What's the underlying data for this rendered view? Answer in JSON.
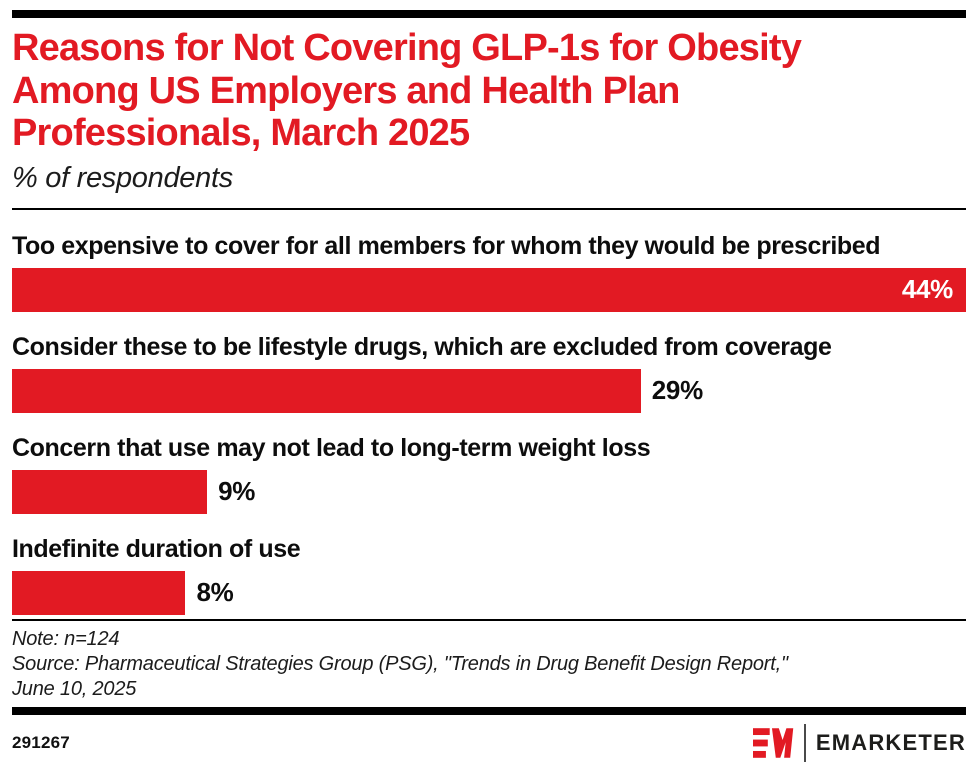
{
  "header": {
    "title_lines": [
      "Reasons for Not Covering GLP-1s for Obesity",
      "Among US Employers and Health Plan",
      "Professionals, March 2025"
    ],
    "subtitle": "% of respondents"
  },
  "chart_data": {
    "type": "bar",
    "orientation": "horizontal",
    "title": "Reasons for Not Covering GLP-1s for Obesity Among US Employers and Health Plan Professionals, March 2025",
    "unit_label": "% of respondents",
    "categories": [
      "Too expensive to cover for all members for whom they would be prescribed",
      "Consider these to be lifestyle drugs, which are excluded from coverage",
      "Concern that use may not lead to long-term weight loss",
      "Indefinite duration of use"
    ],
    "values": [
      44,
      29,
      9,
      8
    ],
    "value_labels": [
      "44%",
      "29%",
      "9%",
      "8%"
    ],
    "xlim": [
      0,
      44
    ],
    "grid": false,
    "legend": false,
    "bar_color": "#e21a23",
    "value_label_placement": [
      "inside-right",
      "outside-right",
      "outside-right",
      "outside-right"
    ]
  },
  "footer": {
    "note": "Note: n=124",
    "source_line": "Source: Pharmaceutical Strategies Group (PSG), \"Trends in Drug Benefit Design Report,\"",
    "source_date": "June 10, 2025",
    "chart_number": "291267",
    "brand_wordmark": "EMARKETER"
  },
  "colors": {
    "accent_red": "#e21a23",
    "text_black": "#0d0d0d",
    "rule_black": "#000000"
  }
}
